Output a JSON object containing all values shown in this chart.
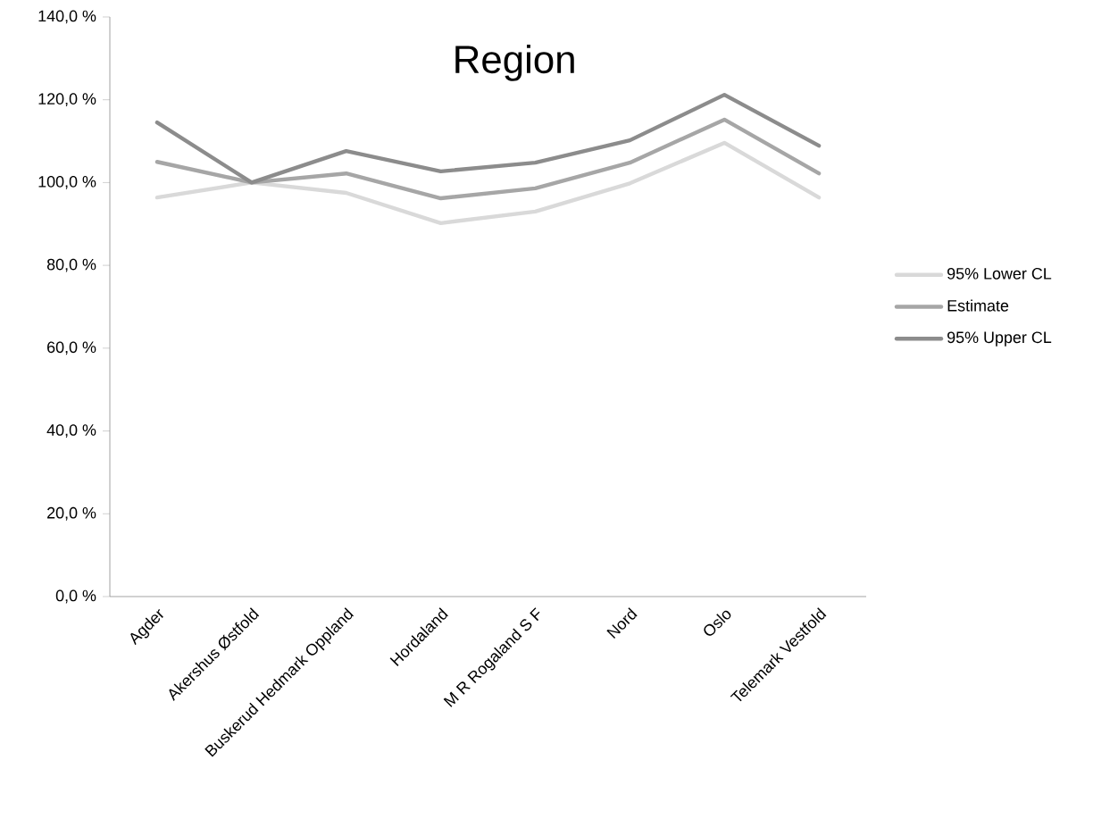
{
  "chart_data": {
    "type": "line",
    "title": "Region",
    "categories": [
      "Agder",
      "Akershus Østfold",
      "Buskerud Hedmark Oppland",
      "Hordaland",
      "M R Rogaland S F",
      "Nord",
      "Oslo",
      "Telemark Vestfold"
    ],
    "series": [
      {
        "name": "95% Lower CL",
        "color": "#d9d9d9",
        "values": [
          96.4,
          100.0,
          97.5,
          90.2,
          93.0,
          99.8,
          109.6,
          96.4
        ]
      },
      {
        "name": "Estimate",
        "color": "#a6a6a6",
        "values": [
          105.0,
          100.0,
          102.2,
          96.2,
          98.6,
          104.8,
          115.2,
          102.2
        ]
      },
      {
        "name": "95% Upper CL",
        "color": "#8c8c8c",
        "values": [
          114.5,
          100.0,
          107.6,
          102.7,
          104.8,
          110.2,
          121.2,
          108.9
        ]
      }
    ],
    "ylim": [
      0,
      140
    ],
    "yticks": [
      {
        "value": 0,
        "label": "0,0 %"
      },
      {
        "value": 20,
        "label": "20,0 %"
      },
      {
        "value": 40,
        "label": "40,0 %"
      },
      {
        "value": 60,
        "label": "60,0 %"
      },
      {
        "value": 80,
        "label": "80,0 %"
      },
      {
        "value": 100,
        "label": "100,0 %"
      },
      {
        "value": 120,
        "label": "120,0 %"
      },
      {
        "value": 140,
        "label": "140,0 %"
      }
    ],
    "grid": false,
    "legend": "right",
    "marker": "none",
    "line_style": "solid"
  }
}
